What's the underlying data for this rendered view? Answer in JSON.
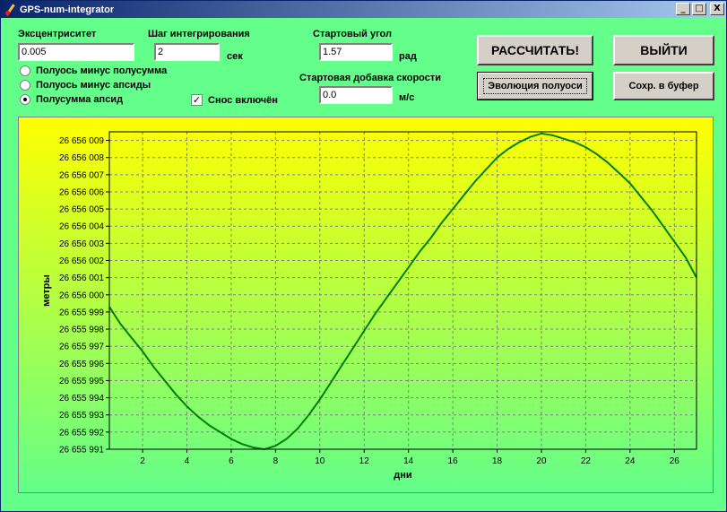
{
  "window": {
    "title": "GPS-num-integrator",
    "minimize": "_",
    "maximize": "□",
    "close": "X"
  },
  "form": {
    "eccentricity_label": "Эксцентриситет",
    "eccentricity_value": "0.005",
    "step_label": "Шаг интегрирования",
    "step_value": "2",
    "step_unit": "сек",
    "start_angle_label": "Стартовый угол",
    "start_angle_value": "1.57",
    "start_angle_unit": "рад",
    "speed_add_label": "Стартовая добавка скорости",
    "speed_add_value": "0.0",
    "speed_add_unit": "м/с",
    "radio_options": [
      "Полуось минус полусумма",
      "Полуось минус апсиды",
      "Полусумма апсид"
    ],
    "radio_selected": 2,
    "drift_label": "Снос включён",
    "drift_checked": true,
    "drift_mark": "✓"
  },
  "buttons": {
    "calculate": "РАССЧИТАТЬ!",
    "exit": "ВЫЙТИ",
    "evolution": "Эволюция полуоси",
    "copy": "Сохр. в буфер"
  },
  "colors": {
    "plot_top": "#ffff00",
    "plot_bottom": "#63ff8a",
    "line": "#008000",
    "grid": "#808080"
  },
  "chart_data": {
    "type": "line",
    "xlabel": "дни",
    "ylabel": "метры",
    "xlim": [
      0.5,
      27
    ],
    "ylim": [
      26655991,
      26656009.5
    ],
    "x_ticks": [
      2,
      4,
      6,
      8,
      10,
      12,
      14,
      16,
      18,
      20,
      22,
      24,
      26
    ],
    "y_ticks": [
      26655991,
      26655992,
      26655993,
      26655994,
      26655995,
      26655996,
      26655997,
      26655998,
      26655999,
      26656000,
      26656001,
      26656002,
      26656003,
      26656004,
      26656005,
      26656006,
      26656007,
      26656008,
      26656009
    ],
    "y_tick_labels": [
      "26 655 991",
      "26 655 992",
      "26 655 993",
      "26 655 994",
      "26 655 995",
      "26 655 996",
      "26 655 997",
      "26 655 998",
      "26 655 999",
      "26 656 000",
      "26 656 001",
      "26 656 002",
      "26 656 003",
      "26 656 004",
      "26 656 005",
      "26 656 006",
      "26 656 007",
      "26 656 008",
      "26 656 009"
    ],
    "grid": true,
    "series": [
      {
        "x": [
          0.5,
          1.0,
          1.5,
          2.0,
          2.5,
          3.0,
          3.5,
          4.0,
          4.5,
          5.0,
          5.5,
          6.0,
          6.5,
          7.0,
          7.5,
          8.0,
          8.5,
          9.0,
          9.5,
          10.0,
          10.5,
          11.0,
          11.5,
          12.0,
          12.5,
          13.0,
          13.5,
          14.0,
          14.5,
          15.0,
          15.5,
          16.0,
          16.5,
          17.0,
          17.5,
          18.0,
          18.5,
          19.0,
          19.5,
          20.0,
          20.5,
          21.0,
          21.5,
          22.0,
          22.5,
          23.0,
          23.5,
          24.0,
          24.5,
          25.0,
          25.5,
          26.0,
          26.5,
          27.0
        ],
        "y": [
          26655999.3,
          26655998.3,
          26655997.5,
          26655996.7,
          26655995.8,
          26655995.0,
          26655994.2,
          26655993.5,
          26655992.9,
          26655992.4,
          26655992.0,
          26655991.6,
          26655991.3,
          26655991.1,
          26655991.0,
          26655991.2,
          26655991.6,
          26655992.2,
          26655993.0,
          26655993.9,
          26655994.9,
          26655995.9,
          26655996.9,
          26655997.9,
          26655998.9,
          26655999.8,
          26656000.7,
          26656001.6,
          26656002.5,
          26656003.3,
          26656004.2,
          26656005.0,
          26656005.8,
          26656006.6,
          26656007.3,
          26656008.0,
          26656008.5,
          26656008.9,
          26656009.2,
          26656009.4,
          26656009.3,
          26656009.1,
          26656008.9,
          26656008.6,
          26656008.2,
          26656007.7,
          26656007.1,
          26656006.5,
          26656005.7,
          26656004.9,
          26656004.0,
          26656003.1,
          26656002.2,
          26656001.0
        ]
      }
    ]
  }
}
